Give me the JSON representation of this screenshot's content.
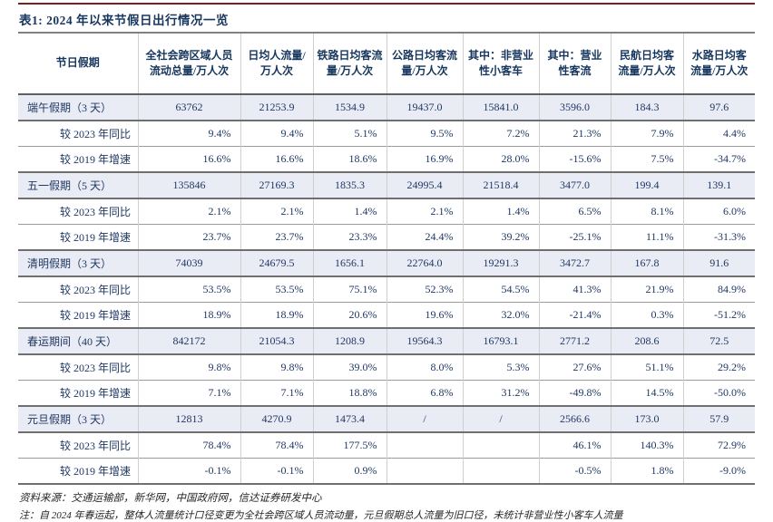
{
  "accent": {
    "top_line_color": "#7e1f1f",
    "heading_text_color": "#17365d",
    "body_text_color": "#1f3864",
    "band_color": "#eaecf5"
  },
  "table": {
    "title": "表1: 2024 年以来节假日出行情况一览",
    "columns": [
      "节日假期",
      "全社会跨区域人员流动总量/万人次",
      "日均人流量/万人次",
      "铁路日均客流量/万人次",
      "公路日均客流量/万人次",
      "其中：非营业性小客车",
      "其中：营业性客流",
      "民航日均客流量/万人次",
      "水路日均客流量/万人次"
    ],
    "rows": [
      {
        "type": "holiday",
        "label": "端午假期（3 天）",
        "values": [
          "63762",
          "21253.9",
          "1534.9",
          "19437.0",
          "15841.0",
          "3596.0",
          "184.3",
          "97.6"
        ]
      },
      {
        "type": "yoy",
        "label": "较 2023 年同比",
        "values": [
          "9.4%",
          "9.4%",
          "5.1%",
          "9.5%",
          "7.2%",
          "21.3%",
          "7.9%",
          "4.4%"
        ]
      },
      {
        "type": "growth",
        "label": "较 2019 年增速",
        "values": [
          "16.6%",
          "16.6%",
          "18.6%",
          "16.9%",
          "28.0%",
          "-15.6%",
          "7.5%",
          "-34.7%"
        ]
      },
      {
        "type": "holiday",
        "label": "五一假期（5 天）",
        "values": [
          "135846",
          "27169.3",
          "1835.3",
          "24995.4",
          "21518.4",
          "3477.0",
          "199.4",
          "139.1"
        ]
      },
      {
        "type": "yoy",
        "label": "较 2023 年同比",
        "values": [
          "2.1%",
          "2.1%",
          "1.4%",
          "2.1%",
          "1.4%",
          "6.5%",
          "8.1%",
          "6.0%"
        ]
      },
      {
        "type": "growth",
        "label": "较 2019 年增速",
        "values": [
          "23.7%",
          "23.7%",
          "23.3%",
          "24.4%",
          "39.2%",
          "-25.1%",
          "11.1%",
          "-31.3%"
        ]
      },
      {
        "type": "holiday",
        "label": "清明假期（3 天）",
        "values": [
          "74039",
          "24679.5",
          "1656.1",
          "22764.0",
          "19291.3",
          "3472.7",
          "167.8",
          "91.6"
        ]
      },
      {
        "type": "yoy",
        "label": "较 2023 年同比",
        "values": [
          "53.5%",
          "53.5%",
          "75.1%",
          "52.3%",
          "54.5%",
          "41.3%",
          "21.9%",
          "84.9%"
        ]
      },
      {
        "type": "growth",
        "label": "较 2019 年增速",
        "values": [
          "18.9%",
          "18.9%",
          "20.6%",
          "19.6%",
          "32.0%",
          "-21.4%",
          "0.3%",
          "-51.2%"
        ]
      },
      {
        "type": "holiday",
        "label": "春运期间（40 天）",
        "values": [
          "842172",
          "21054.3",
          "1208.9",
          "19564.3",
          "16793.1",
          "2771.2",
          "208.6",
          "72.5"
        ]
      },
      {
        "type": "yoy",
        "label": "较 2023 年同比",
        "values": [
          "9.8%",
          "9.8%",
          "39.0%",
          "8.0%",
          "5.3%",
          "27.6%",
          "51.1%",
          "29.2%"
        ]
      },
      {
        "type": "growth",
        "label": "较 2019 年增速",
        "values": [
          "7.1%",
          "7.1%",
          "18.8%",
          "6.8%",
          "31.2%",
          "-49.8%",
          "14.5%",
          "-50.0%"
        ]
      },
      {
        "type": "holiday",
        "label": "元旦假期（3 天）",
        "values": [
          "12813",
          "4270.9",
          "1473.4",
          "/",
          "/",
          "2566.6",
          "173.0",
          "57.9"
        ]
      },
      {
        "type": "yoy",
        "label": "较 2023 年同比",
        "values": [
          "78.4%",
          "78.4%",
          "177.5%",
          "",
          "",
          "46.1%",
          "140.3%",
          "72.9%"
        ]
      },
      {
        "type": "growth",
        "label": "较 2019 年增速",
        "values": [
          "-0.1%",
          "-0.1%",
          "0.9%",
          "",
          "",
          "-0.5%",
          "1.8%",
          "-9.0%"
        ]
      }
    ]
  },
  "footer": {
    "source": "资料来源：交通运输部，新华网，中国政府网，信达证券研发中心",
    "note": "注：自 2024 年春运起，整体人流量统计口径变更为全社会跨区域人员流动量，元旦假期总人流量为旧口径，未统计非营业性小客车人流量"
  }
}
